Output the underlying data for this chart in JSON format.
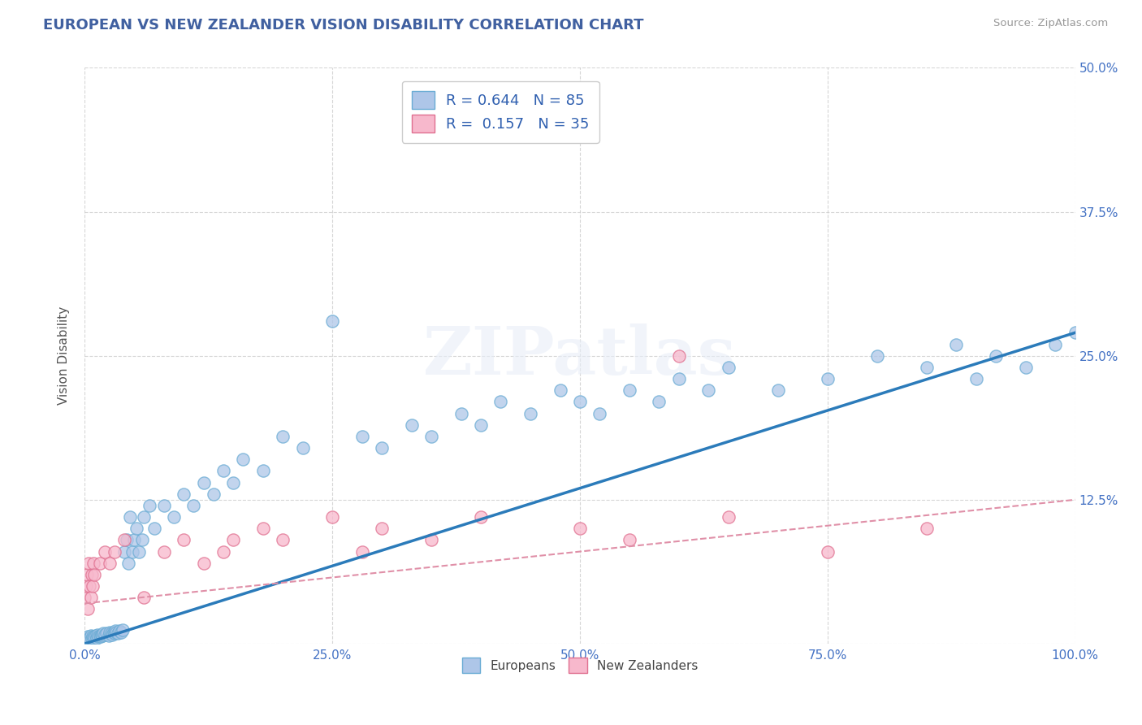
{
  "title": "EUROPEAN VS NEW ZEALANDER VISION DISABILITY CORRELATION CHART",
  "source": "Source: ZipAtlas.com",
  "ylabel": "Vision Disability",
  "xlim": [
    0,
    1.0
  ],
  "ylim": [
    0,
    0.5
  ],
  "xticks": [
    0.0,
    0.25,
    0.5,
    0.75,
    1.0
  ],
  "xtick_labels": [
    "0.0%",
    "25.0%",
    "50.0%",
    "75.0%",
    "100.0%"
  ],
  "yticks": [
    0.0,
    0.125,
    0.25,
    0.375,
    0.5
  ],
  "ytick_labels": [
    "",
    "12.5%",
    "25.0%",
    "37.5%",
    "50.0%"
  ],
  "european_R": 0.644,
  "european_N": 85,
  "newzealand_R": 0.157,
  "newzealand_N": 35,
  "blue_scatter_color": "#aec6e8",
  "blue_edge_color": "#6aacd4",
  "pink_scatter_color": "#f7b8cc",
  "pink_edge_color": "#e07090",
  "trend_blue_color": "#2b7bba",
  "trend_pink_color": "#e090a8",
  "legend_text_color": "#3060b0",
  "title_color": "#4060a0",
  "axis_label_color": "#555555",
  "tick_color": "#4472c4",
  "grid_color": "#cccccc",
  "background_color": "#ffffff",
  "eu_trend_x0": 0.0,
  "eu_trend_y0": 0.0,
  "eu_trend_x1": 1.0,
  "eu_trend_y1": 0.27,
  "nz_trend_x0": 0.0,
  "nz_trend_y0": 0.035,
  "nz_trend_x1": 1.0,
  "nz_trend_y1": 0.125,
  "eu_x_cluster": [
    0.0,
    0.001,
    0.002,
    0.003,
    0.004,
    0.005,
    0.006,
    0.007,
    0.008,
    0.009,
    0.01,
    0.011,
    0.012,
    0.013,
    0.014,
    0.015,
    0.016,
    0.017,
    0.018,
    0.019,
    0.02,
    0.022,
    0.024,
    0.025,
    0.027,
    0.028,
    0.029,
    0.03,
    0.031,
    0.032,
    0.033,
    0.035,
    0.037,
    0.038,
    0.04,
    0.042,
    0.044,
    0.046,
    0.048,
    0.05,
    0.052,
    0.055,
    0.058,
    0.06,
    0.065,
    0.07,
    0.08,
    0.09,
    0.1,
    0.11,
    0.12,
    0.13,
    0.14,
    0.15,
    0.16,
    0.18,
    0.2,
    0.22,
    0.25,
    0.28,
    0.3,
    0.33,
    0.35,
    0.38,
    0.4,
    0.42,
    0.45,
    0.48,
    0.5,
    0.52,
    0.55,
    0.58,
    0.6,
    0.63,
    0.65,
    0.7,
    0.75,
    0.8,
    0.85,
    0.88,
    0.9,
    0.92,
    0.95,
    0.98,
    1.0
  ],
  "eu_y_cluster": [
    0.005,
    0.003,
    0.004,
    0.006,
    0.004,
    0.005,
    0.007,
    0.004,
    0.006,
    0.005,
    0.006,
    0.007,
    0.005,
    0.008,
    0.006,
    0.007,
    0.006,
    0.008,
    0.007,
    0.009,
    0.008,
    0.009,
    0.007,
    0.01,
    0.009,
    0.008,
    0.01,
    0.009,
    0.011,
    0.01,
    0.009,
    0.011,
    0.01,
    0.012,
    0.08,
    0.09,
    0.07,
    0.11,
    0.08,
    0.09,
    0.1,
    0.08,
    0.09,
    0.11,
    0.12,
    0.1,
    0.12,
    0.11,
    0.13,
    0.12,
    0.14,
    0.13,
    0.15,
    0.14,
    0.16,
    0.15,
    0.18,
    0.17,
    0.28,
    0.18,
    0.17,
    0.19,
    0.18,
    0.2,
    0.19,
    0.21,
    0.2,
    0.22,
    0.21,
    0.2,
    0.22,
    0.21,
    0.23,
    0.22,
    0.24,
    0.22,
    0.23,
    0.25,
    0.24,
    0.26,
    0.23,
    0.25,
    0.24,
    0.26,
    0.27
  ],
  "nz_x_cluster": [
    0.0,
    0.001,
    0.002,
    0.003,
    0.004,
    0.005,
    0.006,
    0.007,
    0.008,
    0.009,
    0.01,
    0.015,
    0.02,
    0.025,
    0.03,
    0.04,
    0.06,
    0.08,
    0.1,
    0.12,
    0.14,
    0.15,
    0.18,
    0.2,
    0.25,
    0.28,
    0.3,
    0.35,
    0.4,
    0.5,
    0.55,
    0.6,
    0.65,
    0.75,
    0.85
  ],
  "nz_y_cluster": [
    0.04,
    0.05,
    0.06,
    0.03,
    0.07,
    0.05,
    0.04,
    0.06,
    0.05,
    0.07,
    0.06,
    0.07,
    0.08,
    0.07,
    0.08,
    0.09,
    0.04,
    0.08,
    0.09,
    0.07,
    0.08,
    0.09,
    0.1,
    0.09,
    0.11,
    0.08,
    0.1,
    0.09,
    0.11,
    0.1,
    0.09,
    0.25,
    0.11,
    0.08,
    0.1
  ]
}
